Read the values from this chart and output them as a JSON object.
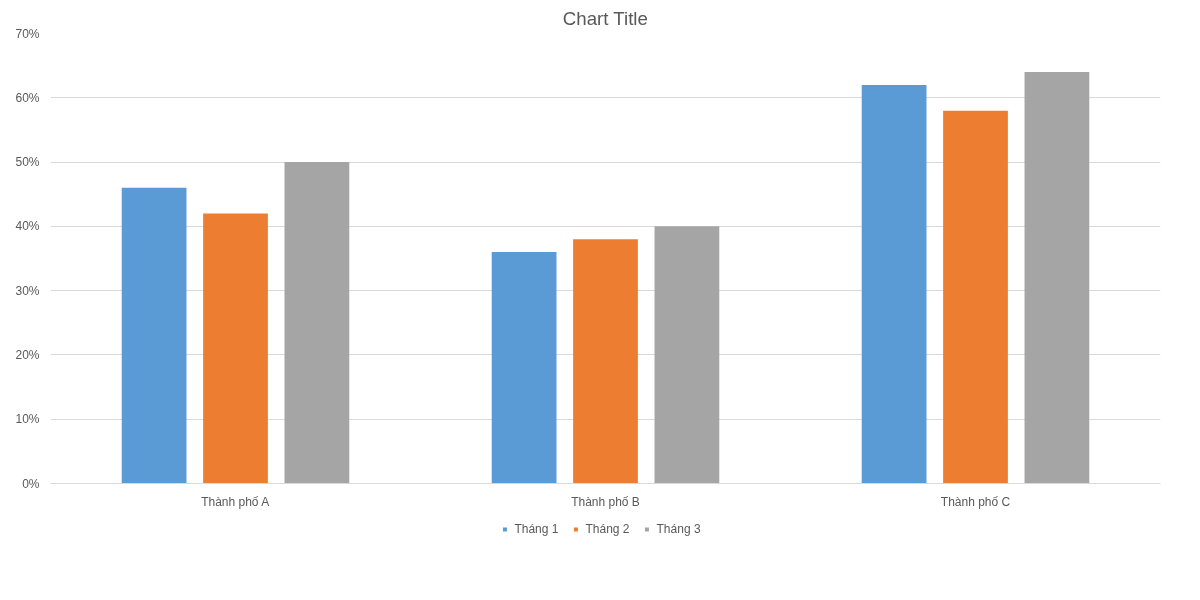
{
  "chart_data": {
    "type": "bar",
    "title": "Chart Title",
    "categories": [
      "Thành phố A",
      "Thành phố B",
      "Thành phố C"
    ],
    "series": [
      {
        "name": "Tháng 1",
        "color": "#5b9bd5",
        "values": [
          46,
          36,
          62
        ]
      },
      {
        "name": "Tháng 2",
        "color": "#ed7d31",
        "values": [
          42,
          38,
          58
        ]
      },
      {
        "name": "Tháng 3",
        "color": "#a5a5a5",
        "values": [
          50,
          40,
          64
        ]
      }
    ],
    "ylim": [
      0,
      70
    ],
    "yticks": [
      {
        "value": 0,
        "label": "0%"
      },
      {
        "value": 10,
        "label": "10%"
      },
      {
        "value": 20,
        "label": "20%"
      },
      {
        "value": 30,
        "label": "30%"
      },
      {
        "value": 40,
        "label": "40%"
      },
      {
        "value": 50,
        "label": "50%"
      },
      {
        "value": 60,
        "label": "60%"
      },
      {
        "value": 70,
        "label": "70%"
      }
    ],
    "grid": "y",
    "legend": "bottom"
  }
}
